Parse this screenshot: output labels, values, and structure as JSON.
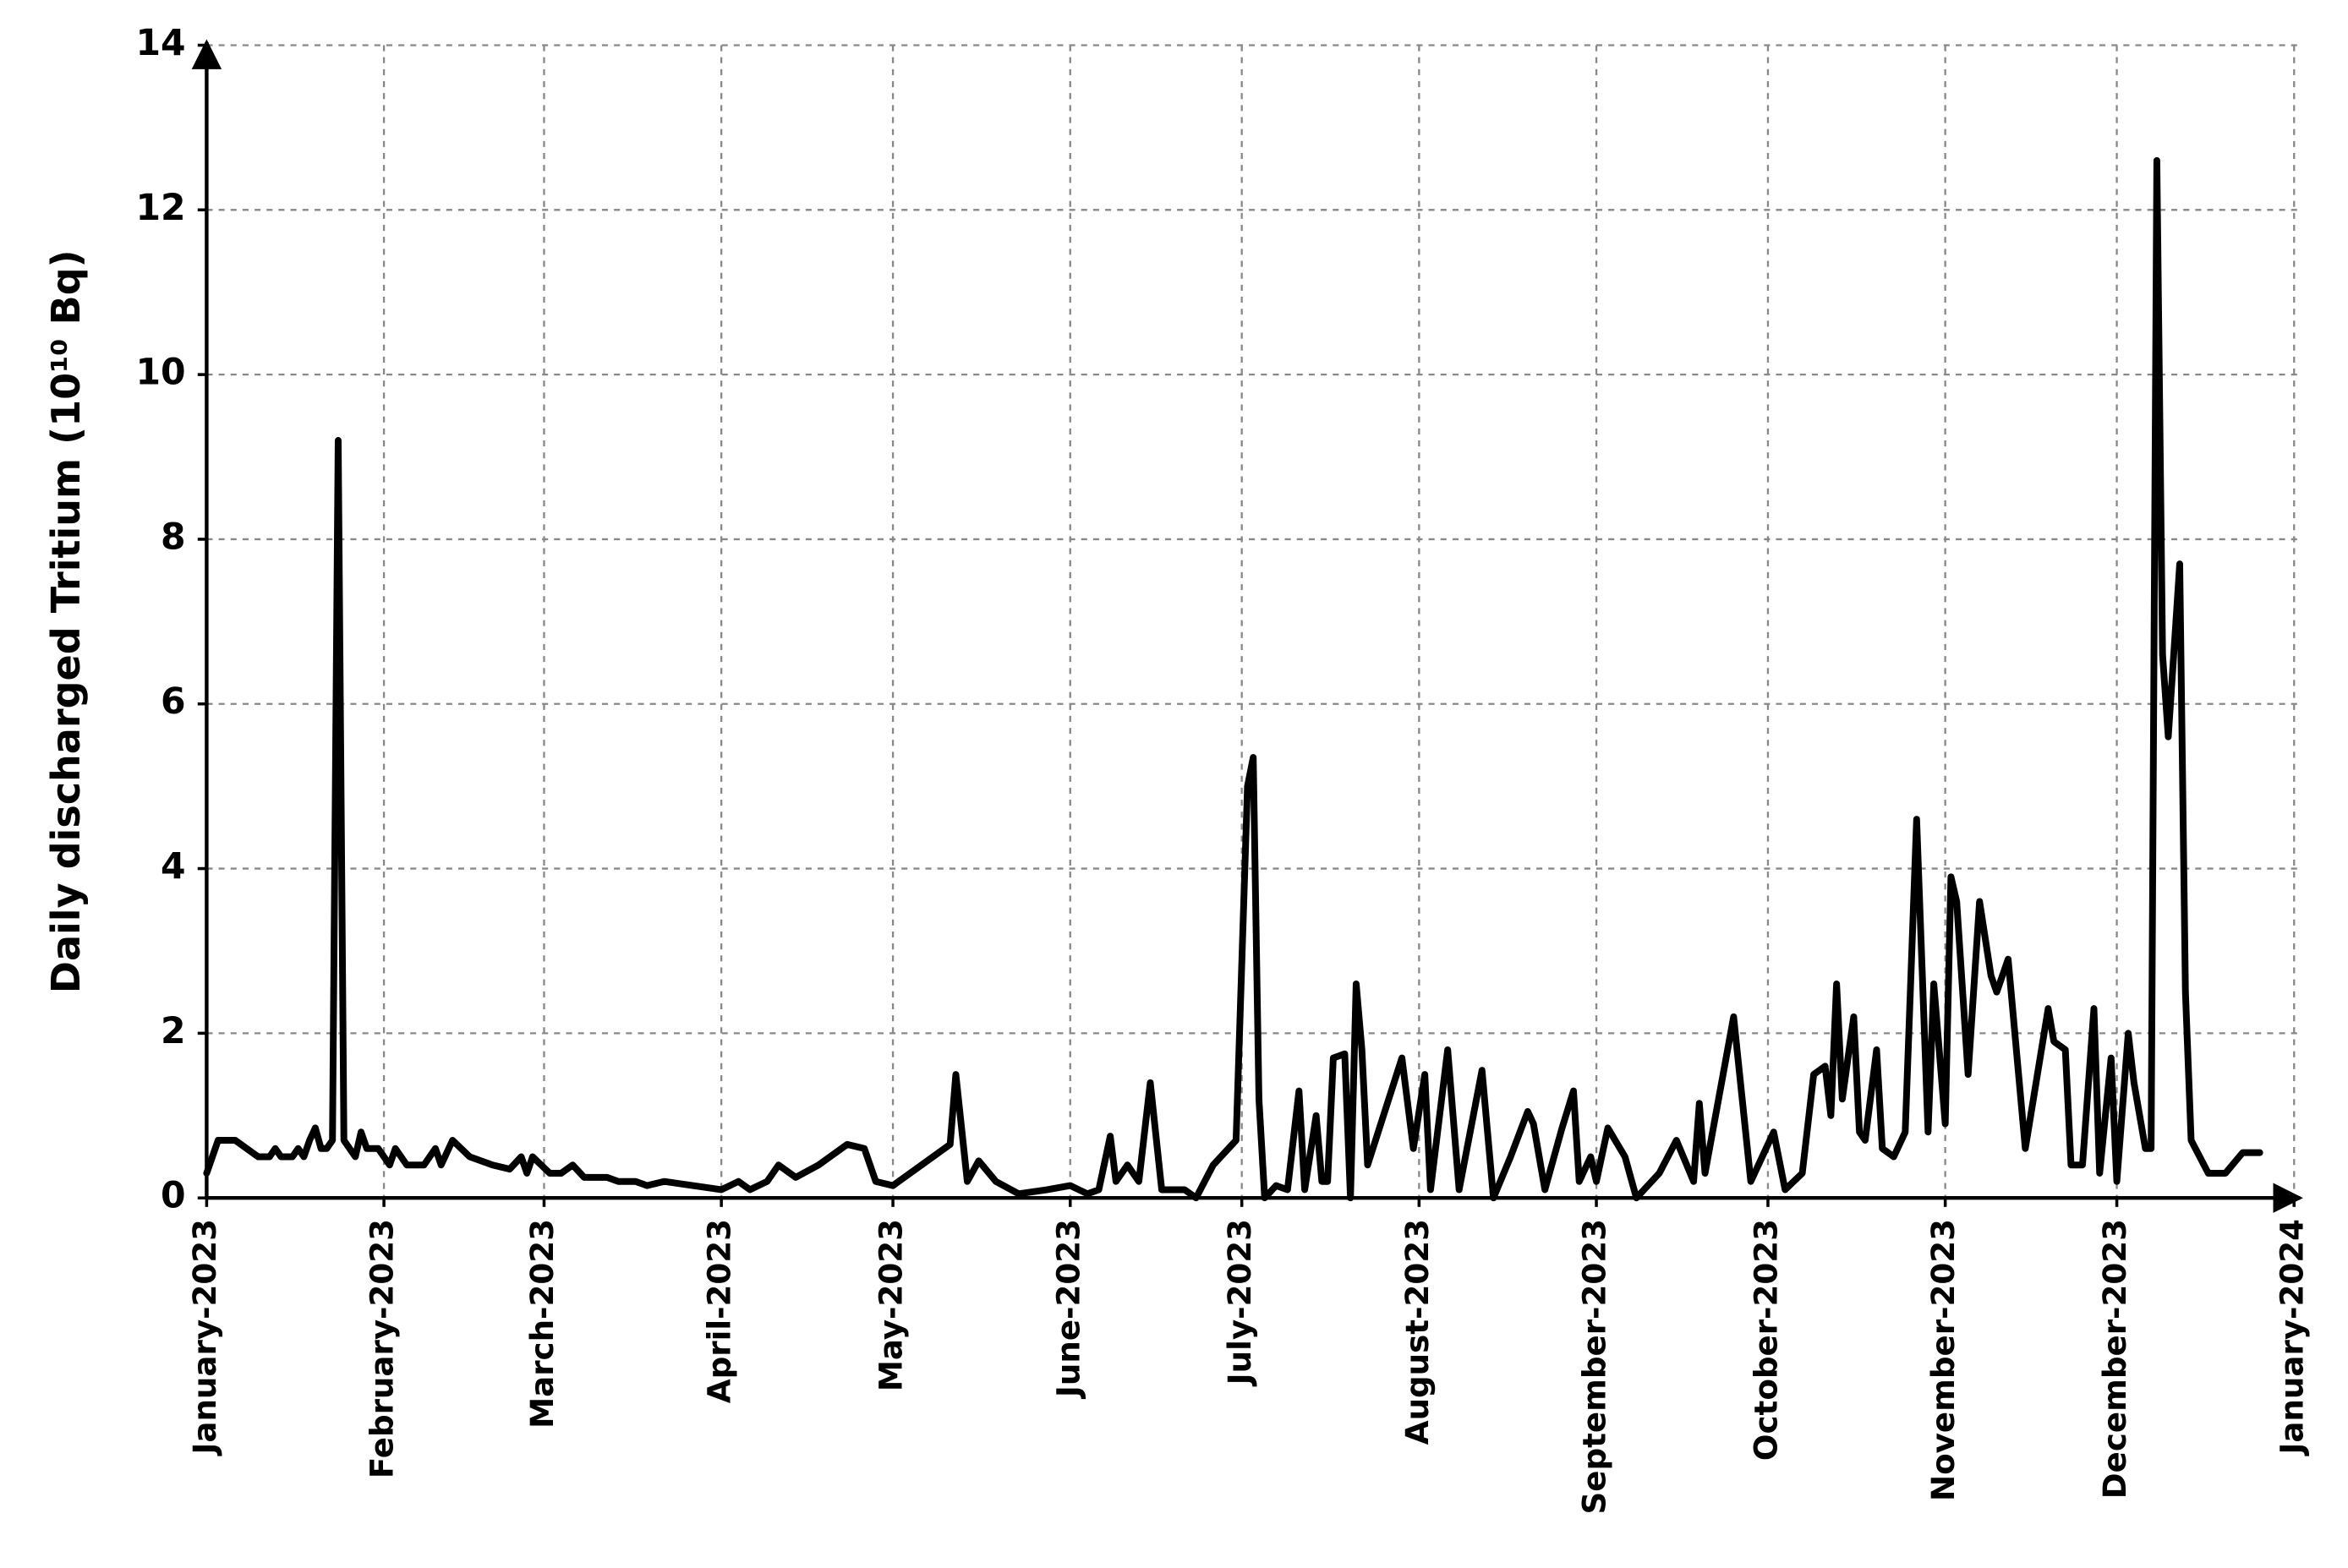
{
  "chart_data": {
    "type": "line",
    "ylabel": "Daily discharged Tritium (10¹⁰ Bq)",
    "color": "#000000",
    "grid": true,
    "xlim": [
      0,
      365
    ],
    "xticks": [
      {
        "value": 0,
        "label": "January-2023"
      },
      {
        "value": 31,
        "label": "February-2023"
      },
      {
        "value": 59,
        "label": "March-2023"
      },
      {
        "value": 90,
        "label": "April-2023"
      },
      {
        "value": 120,
        "label": "May-2023"
      },
      {
        "value": 151,
        "label": "June-2023"
      },
      {
        "value": 181,
        "label": "July-2023"
      },
      {
        "value": 212,
        "label": "August-2023"
      },
      {
        "value": 243,
        "label": "September-2023"
      },
      {
        "value": 273,
        "label": "October-2023"
      },
      {
        "value": 304,
        "label": "November-2023"
      },
      {
        "value": 334,
        "label": "December-2023"
      },
      {
        "value": 365,
        "label": "January-2024"
      }
    ],
    "ylim": [
      0,
      14
    ],
    "yticks": [
      0,
      2,
      4,
      6,
      8,
      10,
      12,
      14
    ],
    "x": [
      0,
      2,
      5,
      7,
      9,
      11,
      12,
      13,
      15,
      16,
      17,
      18,
      19,
      20,
      21,
      22,
      23,
      24,
      25,
      26,
      27,
      28,
      30,
      32,
      33,
      35,
      38,
      40,
      41,
      43,
      46,
      50,
      53,
      55,
      56,
      57,
      60,
      62,
      64,
      66,
      70,
      72,
      75,
      77,
      80,
      85,
      90,
      93,
      95,
      98,
      100,
      103,
      107,
      112,
      115,
      117,
      120,
      125,
      130,
      131,
      133,
      135,
      138,
      142,
      147,
      151,
      154,
      156,
      158,
      159,
      161,
      163,
      165,
      167,
      171,
      173,
      176,
      180,
      182,
      183,
      184,
      185,
      187,
      189,
      191,
      192,
      194,
      195,
      196,
      197,
      199,
      200,
      201,
      202,
      203,
      209,
      211,
      213,
      214,
      217,
      219,
      223,
      225,
      228,
      231,
      232,
      234,
      237,
      239,
      240,
      242,
      243,
      245,
      248,
      250,
      254,
      257,
      260,
      261,
      262,
      267,
      270,
      274,
      276,
      279,
      281,
      283,
      284,
      285,
      286,
      288,
      289,
      290,
      292,
      293,
      295,
      297,
      299,
      301,
      302,
      304,
      305,
      306,
      308,
      310,
      312,
      313,
      315,
      318,
      322,
      323,
      325,
      326,
      328,
      330,
      331,
      333,
      334,
      336,
      337,
      339,
      340,
      341,
      342,
      343,
      345,
      346,
      347,
      350,
      353,
      356,
      359
    ],
    "values": [
      0.3,
      0.7,
      0.7,
      0.6,
      0.5,
      0.5,
      0.6,
      0.5,
      0.5,
      0.6,
      0.5,
      0.7,
      0.85,
      0.6,
      0.6,
      0.7,
      9.2,
      0.7,
      0.6,
      0.5,
      0.8,
      0.6,
      0.6,
      0.4,
      0.6,
      0.4,
      0.4,
      0.6,
      0.4,
      0.7,
      0.5,
      0.4,
      0.35,
      0.5,
      0.3,
      0.5,
      0.3,
      0.3,
      0.4,
      0.25,
      0.25,
      0.2,
      0.2,
      0.15,
      0.2,
      0.15,
      0.1,
      0.2,
      0.1,
      0.2,
      0.4,
      0.25,
      0.4,
      0.65,
      0.6,
      0.2,
      0.15,
      0.4,
      0.65,
      1.5,
      0.2,
      0.45,
      0.2,
      0.05,
      0.1,
      0.15,
      0.05,
      0.1,
      0.75,
      0.2,
      0.4,
      0.2,
      1.4,
      0.1,
      0.1,
      0,
      0.4,
      0.7,
      5.0,
      5.35,
      1.2,
      0,
      0.15,
      0.1,
      1.3,
      0.1,
      1.0,
      0.2,
      0.2,
      1.7,
      1.75,
      0,
      2.6,
      1.8,
      0.4,
      1.7,
      0.6,
      1.5,
      0.1,
      1.8,
      0.1,
      1.55,
      0,
      0.5,
      1.05,
      0.9,
      0.1,
      0.85,
      1.3,
      0.2,
      0.5,
      0.2,
      0.85,
      0.5,
      0,
      0.3,
      0.7,
      0.2,
      1.15,
      0.3,
      2.2,
      0.2,
      0.8,
      0.1,
      0.3,
      1.5,
      1.6,
      1.0,
      2.6,
      1.2,
      2.2,
      0.8,
      0.7,
      1.8,
      0.6,
      0.5,
      0.8,
      4.6,
      0.8,
      2.6,
      0.9,
      3.9,
      3.6,
      1.5,
      3.6,
      2.7,
      2.5,
      2.9,
      0.6,
      2.3,
      1.9,
      1.8,
      0.4,
      0.4,
      2.3,
      0.3,
      1.7,
      0.2,
      2.0,
      1.4,
      0.6,
      0.6,
      12.6,
      6.6,
      5.6,
      7.7,
      2.5,
      0.7,
      0.3,
      0.3,
      0.55,
      0.55
    ]
  }
}
